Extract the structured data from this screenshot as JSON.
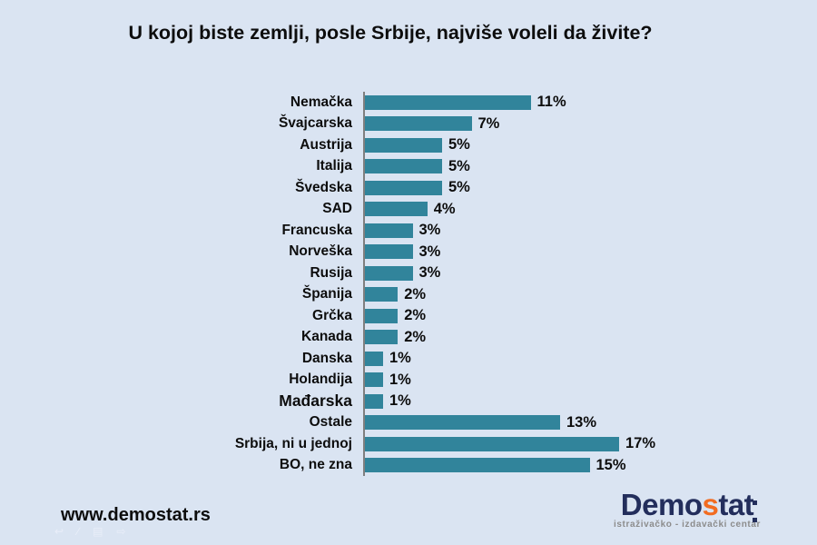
{
  "chart_data": {
    "type": "bar",
    "orientation": "horizontal",
    "title": "U kojoj biste zemlji, posle Srbije, najviše voleli da živite?",
    "categories": [
      "Nemačka",
      "Švajcarska",
      "Austrija",
      "Italija",
      "Švedska",
      "SAD",
      "Francuska",
      "Norveška",
      "Rusija",
      "Španija",
      "Grčka",
      "Kanada",
      "Danska",
      "Holandija",
      "Mađarska",
      "Ostale",
      "Srbija, ni u jednoj",
      "BO, ne zna"
    ],
    "values": [
      11,
      7,
      5,
      5,
      5,
      4,
      3,
      3,
      3,
      2,
      2,
      2,
      1,
      1,
      1,
      13,
      17,
      15
    ],
    "value_labels": [
      "11%",
      "7%",
      "5%",
      "5%",
      "5%",
      "4%",
      "3%",
      "3%",
      "3%",
      "2%",
      "2%",
      "2%",
      "1%",
      "1%",
      "1%",
      "13%",
      "17%",
      "15%"
    ],
    "unit": "%",
    "xlim": [
      0,
      17.5
    ],
    "grid": false,
    "legend": false,
    "emphasized_category": "Mađarska",
    "bar_color": "#31849B",
    "axis_color": "#7F7F7F"
  },
  "footer": {
    "website": "www.demostat.rs",
    "logo": {
      "demo": "Demo",
      "s": "s",
      "tat": "tat",
      "subtitle": "istraživačko - izdavački centar"
    }
  },
  "decorations": {
    "ghost_icons": [
      "↩",
      "∕",
      "▤",
      "⇨"
    ]
  },
  "colors": {
    "background": "#DAE4F2",
    "text": "#0D0D0D",
    "bar": "#31849B",
    "axis": "#7F7F7F",
    "logo_navy": "#232E5C",
    "logo_orange": "#F26C21",
    "logo_subtitle": "#8C8C8C"
  }
}
